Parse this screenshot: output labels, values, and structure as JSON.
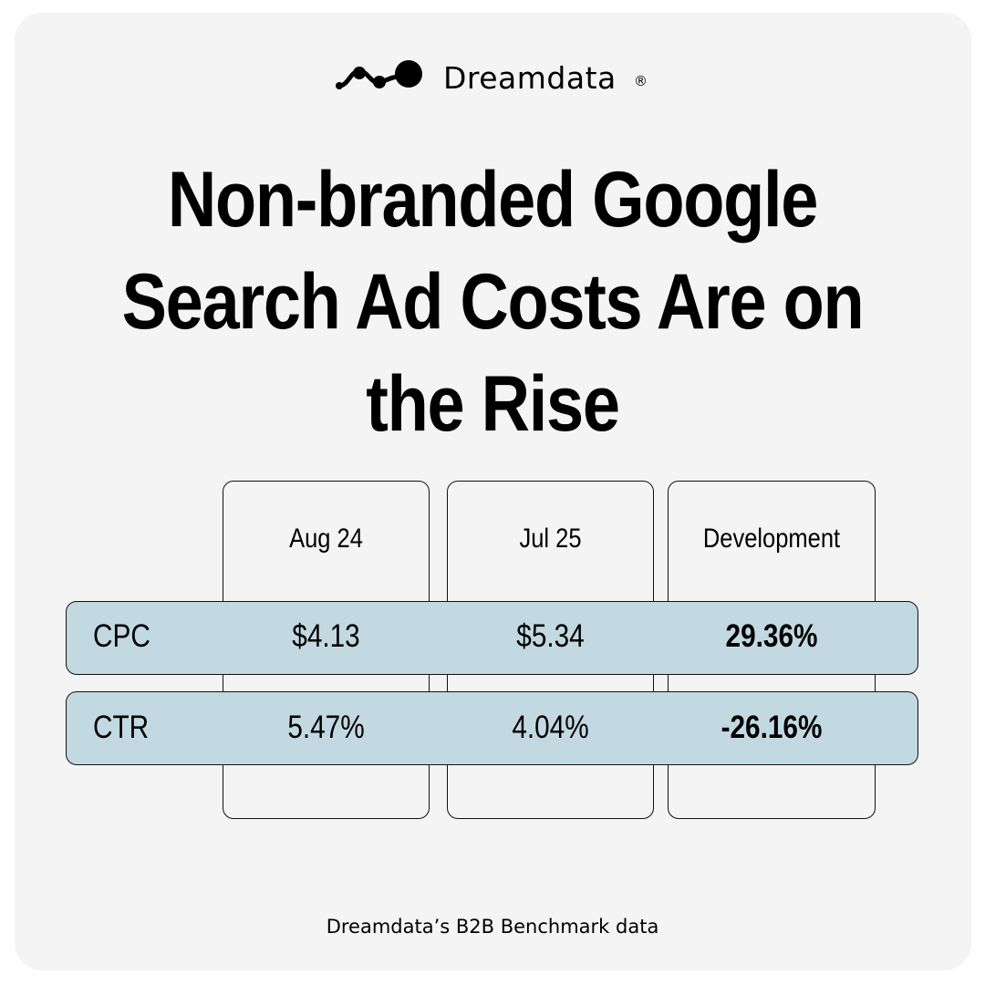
{
  "brand": {
    "name": "Dreamdata",
    "registered": "®"
  },
  "title": "Non-branded Google Search Ad Costs Are on the Rise",
  "chart_data": {
    "type": "table",
    "columns": [
      "",
      "Aug 24",
      "Jul 25",
      "Development"
    ],
    "rows": [
      {
        "metric": "CPC",
        "aug_24": "$4.13",
        "jul_25": "$5.34",
        "development": "29.36%"
      },
      {
        "metric": "CTR",
        "aug_24": "5.47%",
        "jul_25": "4.04%",
        "development": "-26.16%"
      }
    ]
  },
  "colors": {
    "background": "#f4f4f4",
    "row_highlight": "#c3d9e2",
    "text": "#000000"
  },
  "icons": {
    "logo": "dreamdata-dots-logo-icon"
  },
  "source": "Dreamdata’s B2B Benchmark data"
}
